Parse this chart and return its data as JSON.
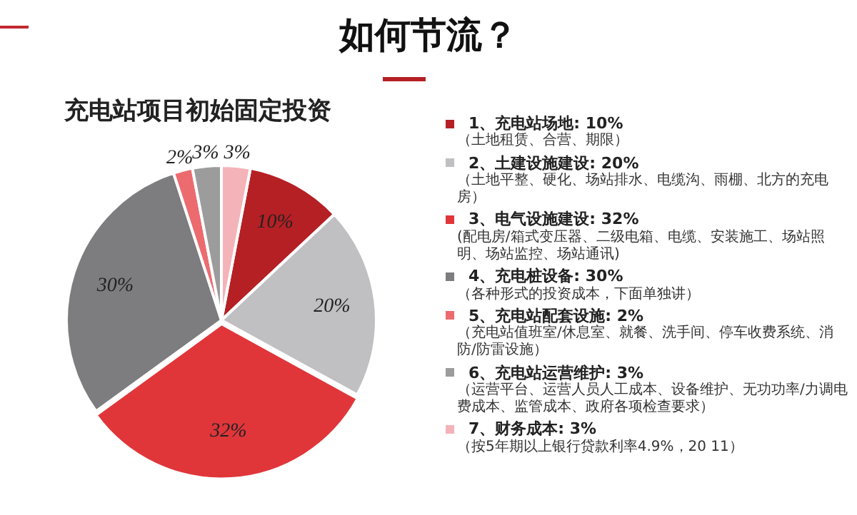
{
  "chart_data": {
    "type": "pie",
    "title": "如何节流？",
    "subtitle": "充电站项目初始固定投资",
    "categories": [
      "1、充电站场地: 10%",
      "2、土建设施建设: 20%",
      "3、电气设施建设: 32%",
      "4、充电桩设备: 30%",
      "5、充电站配套设施: 2%",
      "6、充电站运营维护: 3%",
      "7、财务成本: 3%"
    ],
    "values": [
      10,
      20,
      32,
      30,
      2,
      3,
      3
    ],
    "colors": [
      "#b52025",
      "#c0bfc1",
      "#e0363a",
      "#7d7c7e",
      "#ec6b6f",
      "#9c9c9c",
      "#f4b3b8"
    ],
    "legend": "right",
    "value_labels": [
      "10%",
      "20%",
      "32%",
      "30%",
      "2%",
      "3%",
      "3%"
    ],
    "annotations": [
      "（土地租赁、合营、期限）",
      "（土地平整、硬化、场站排水、电缆沟、雨棚、北方的充电房）",
      "(配电房/箱式变压器、二级电箱、电缆、安装施工、场站照明、场站监控、场站通讯)",
      "（各种形式的投资成本，下面单独讲）",
      "（充电站值班室/休息室、就餐、洗手间、停车收费系统、消防/防雷设施）",
      "（运营平台、运营人员人工成本、设备维护、无功功率/力调电费成本、监管成本、政府各项检查要求）",
      "（按5年期以上银行贷款利率4.9%，20 11）"
    ]
  }
}
